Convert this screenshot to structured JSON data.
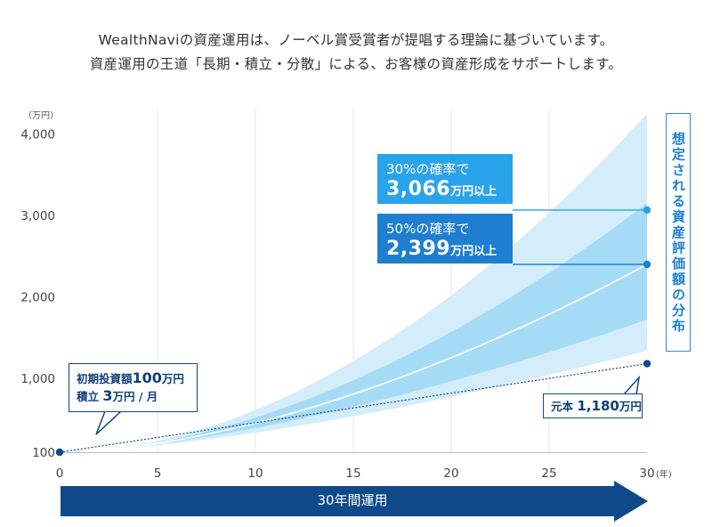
{
  "intro": {
    "line1": "WealthNaviの資産運用は、ノーベル賞受賞者が提唱する理論に基づいています。",
    "line2": "資産運用の王道「長期・積立・分散」による、お客様の資産形成をサポートします。"
  },
  "chart_data": {
    "type": "area",
    "ylabel": "（万円）",
    "xlabel": "(年)",
    "x_ticks": [
      "0",
      "5",
      "10",
      "15",
      "20",
      "25",
      "30"
    ],
    "y_ticks": [
      "100",
      "1,000",
      "2,000",
      "3,000",
      "4,000"
    ],
    "xlim": [
      0,
      30
    ],
    "ylim": [
      100,
      4000
    ],
    "grid": "vertical",
    "series": [
      {
        "role": "outer_band",
        "start": 100,
        "upper_end": 4250,
        "lower_end": 1340
      },
      {
        "role": "inner_band",
        "start": 100,
        "upper_end": 3150,
        "lower_end": 1720
      },
      {
        "name": "30%の確率で 3,066万円以上",
        "role": "marker_30",
        "value": 3066
      },
      {
        "name": "50%の確率で 2,399万円以上",
        "role": "median",
        "start": 100,
        "end": 2399
      },
      {
        "name": "元本",
        "role": "principal",
        "start": 100,
        "end": 1180
      }
    ],
    "colors": {
      "outer": "#d4edfb",
      "inner": "#a6dbf6",
      "median": "#ffffff",
      "principal": "#0e4a8a",
      "marker": "#2a9ee6",
      "marker_dark": "#1e7fd1",
      "axis": "#bbbbbb",
      "grid": "#e6e6e6"
    }
  },
  "highlights": {
    "p30": {
      "small": "30%の確率で",
      "big": "3,066",
      "unit": "万円以上"
    },
    "p50": {
      "small": "50%の確率で",
      "big": "2,399",
      "unit": "万円以上"
    }
  },
  "initial": {
    "label1": "初期投資額",
    "amount": "100",
    "unit1": "万円",
    "label2": "積立",
    "monthly": "3",
    "unit2": "万円 / 月"
  },
  "principal": {
    "label": "元本",
    "amount": "1,180",
    "unit": "万円"
  },
  "distribution_label": "想定される資産評価額の分布",
  "arrow_label": "30年間運用"
}
